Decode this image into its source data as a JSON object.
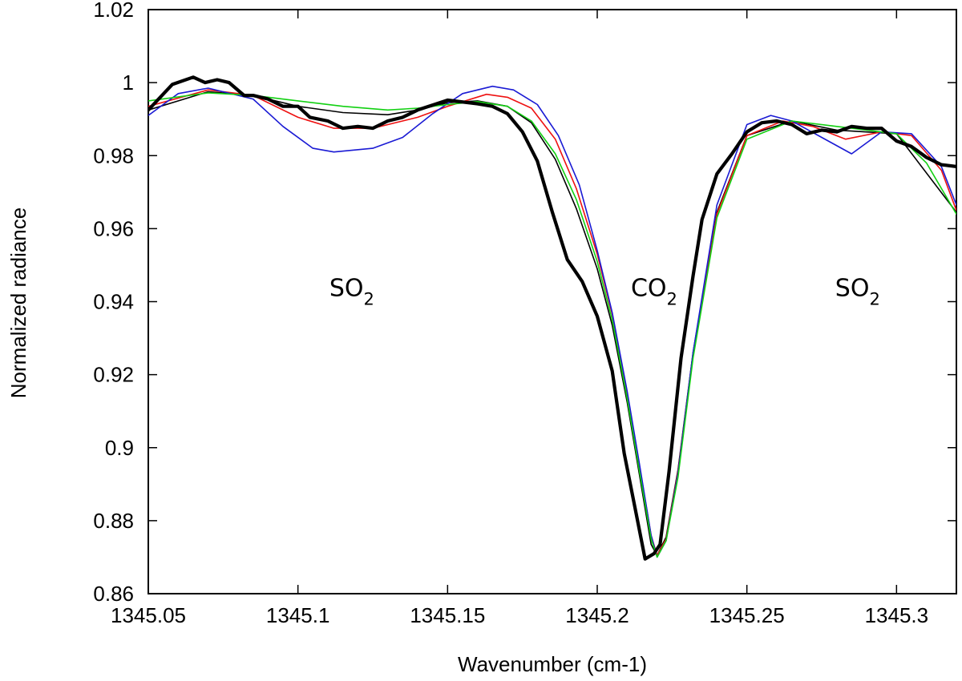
{
  "chart_data": {
    "type": "line",
    "xlabel": "Wavenumber (cm-1)",
    "ylabel": "Normalized radiance",
    "xlim": [
      1345.05,
      1345.32
    ],
    "ylim": [
      0.86,
      1.02
    ],
    "x_ticks": [
      1345.05,
      1345.1,
      1345.15,
      1345.2,
      1345.25,
      1345.3
    ],
    "x_tick_labels": [
      "1345.05",
      "1345.1",
      "1345.15",
      "1345.2",
      "1345.25",
      "1345.3"
    ],
    "y_ticks": [
      0.86,
      0.88,
      0.9,
      0.92,
      0.94,
      0.96,
      0.98,
      1.0,
      1.02
    ],
    "y_tick_labels": [
      "0.86",
      "0.88",
      "0.9",
      "0.92",
      "0.94",
      "0.96",
      "0.98",
      "1",
      "1.02"
    ],
    "grid": false,
    "annotations": [
      {
        "base": "SO",
        "sub": "2",
        "x": 1345.118,
        "y": 0.9415
      },
      {
        "base": "CO",
        "sub": "2",
        "x": 1345.219,
        "y": 0.9415
      },
      {
        "base": "SO",
        "sub": "2",
        "x": 1345.287,
        "y": 0.9415
      }
    ],
    "series": [
      {
        "color": "#000000",
        "width": 1.6,
        "x": [
          1345.05,
          1345.07,
          1345.085,
          1345.1,
          1345.115,
          1345.13,
          1345.14,
          1345.15,
          1345.16,
          1345.17,
          1345.178,
          1345.186,
          1345.193,
          1345.2,
          1345.205,
          1345.21,
          1345.214,
          1345.218,
          1345.22,
          1345.223,
          1345.227,
          1345.232,
          1345.24,
          1345.25,
          1345.265,
          1345.28,
          1345.3,
          1345.32
        ],
        "y": [
          0.9925,
          0.9975,
          0.9965,
          0.9935,
          0.9918,
          0.9912,
          0.9925,
          0.9945,
          0.995,
          0.9935,
          0.989,
          0.979,
          0.9655,
          0.949,
          0.9335,
          0.9125,
          0.893,
          0.8735,
          0.8705,
          0.8755,
          0.894,
          0.926,
          0.9645,
          0.9855,
          0.9895,
          0.987,
          0.986,
          0.9645
        ]
      },
      {
        "color": "#ee1111",
        "width": 1.6,
        "x": [
          1345.05,
          1345.07,
          1345.085,
          1345.1,
          1345.112,
          1345.125,
          1345.14,
          1345.15,
          1345.163,
          1345.17,
          1345.178,
          1345.186,
          1345.193,
          1345.2,
          1345.205,
          1345.21,
          1345.214,
          1345.218,
          1345.22,
          1345.223,
          1345.227,
          1345.232,
          1345.24,
          1345.25,
          1345.262,
          1345.272,
          1345.283,
          1345.295,
          1345.305,
          1345.315,
          1345.32
        ],
        "y": [
          0.9935,
          0.998,
          0.9965,
          0.9905,
          0.9875,
          0.9875,
          0.9905,
          0.9935,
          0.9968,
          0.996,
          0.993,
          0.9845,
          0.971,
          0.953,
          0.9365,
          0.915,
          0.8955,
          0.876,
          0.8705,
          0.875,
          0.8935,
          0.9255,
          0.964,
          0.9855,
          0.9895,
          0.988,
          0.9845,
          0.9865,
          0.9855,
          0.976,
          0.965
        ]
      },
      {
        "color": "#1a1ad4",
        "width": 1.6,
        "x": [
          1345.05,
          1345.06,
          1345.07,
          1345.085,
          1345.095,
          1345.105,
          1345.112,
          1345.125,
          1345.135,
          1345.145,
          1345.155,
          1345.165,
          1345.172,
          1345.18,
          1345.187,
          1345.194,
          1345.2,
          1345.205,
          1345.21,
          1345.214,
          1345.218,
          1345.22,
          1345.223,
          1345.227,
          1345.232,
          1345.24,
          1345.25,
          1345.258,
          1345.265,
          1345.275,
          1345.285,
          1345.295,
          1345.305,
          1345.315,
          1345.32
        ],
        "y": [
          0.991,
          0.997,
          0.9985,
          0.9955,
          0.988,
          0.982,
          0.981,
          0.982,
          0.985,
          0.9915,
          0.997,
          0.999,
          0.998,
          0.994,
          0.9855,
          0.972,
          0.954,
          0.937,
          0.9155,
          0.896,
          0.876,
          0.87,
          0.8745,
          0.893,
          0.926,
          0.9665,
          0.9885,
          0.991,
          0.9895,
          0.985,
          0.9805,
          0.9865,
          0.986,
          0.977,
          0.9665
        ]
      },
      {
        "color": "#12d012",
        "width": 1.6,
        "x": [
          1345.05,
          1345.07,
          1345.085,
          1345.1,
          1345.115,
          1345.13,
          1345.14,
          1345.15,
          1345.16,
          1345.17,
          1345.178,
          1345.186,
          1345.193,
          1345.2,
          1345.205,
          1345.21,
          1345.214,
          1345.218,
          1345.22,
          1345.223,
          1345.227,
          1345.232,
          1345.24,
          1345.25,
          1345.265,
          1345.28,
          1345.3,
          1345.31,
          1345.32
        ],
        "y": [
          0.995,
          0.9972,
          0.9965,
          0.995,
          0.9935,
          0.9925,
          0.993,
          0.994,
          0.9948,
          0.9935,
          0.9895,
          0.9805,
          0.968,
          0.951,
          0.935,
          0.9135,
          0.894,
          0.875,
          0.87,
          0.8745,
          0.892,
          0.9245,
          0.963,
          0.9845,
          0.9895,
          0.988,
          0.986,
          0.978,
          0.964
        ]
      },
      {
        "color": "#000000",
        "width": 4.2,
        "x": [
          1345.05,
          1345.058,
          1345.065,
          1345.069,
          1345.073,
          1345.077,
          1345.082,
          1345.085,
          1345.09,
          1345.095,
          1345.1,
          1345.104,
          1345.11,
          1345.115,
          1345.12,
          1345.125,
          1345.13,
          1345.135,
          1345.14,
          1345.15,
          1345.16,
          1345.165,
          1345.17,
          1345.175,
          1345.18,
          1345.185,
          1345.19,
          1345.195,
          1345.2,
          1345.205,
          1345.209,
          1345.213,
          1345.216,
          1345.219,
          1345.221,
          1345.224,
          1345.228,
          1345.232,
          1345.235,
          1345.24,
          1345.245,
          1345.25,
          1345.255,
          1345.26,
          1345.265,
          1345.27,
          1345.275,
          1345.28,
          1345.285,
          1345.29,
          1345.295,
          1345.3,
          1345.305,
          1345.31,
          1345.315,
          1345.32
        ],
        "y": [
          0.9925,
          0.9995,
          1.0015,
          1.0,
          1.0008,
          1.0,
          0.9965,
          0.9965,
          0.9955,
          0.9935,
          0.9935,
          0.9905,
          0.9895,
          0.9875,
          0.988,
          0.9875,
          0.9895,
          0.9905,
          0.9925,
          0.9952,
          0.9942,
          0.9935,
          0.9915,
          0.9865,
          0.9785,
          0.9645,
          0.9515,
          0.9455,
          0.936,
          0.921,
          0.8985,
          0.882,
          0.8695,
          0.871,
          0.8735,
          0.8935,
          0.9245,
          0.947,
          0.9625,
          0.975,
          0.9805,
          0.9865,
          0.989,
          0.9895,
          0.9885,
          0.986,
          0.987,
          0.9865,
          0.988,
          0.9875,
          0.9875,
          0.984,
          0.9825,
          0.9795,
          0.9775,
          0.977
        ]
      }
    ]
  }
}
